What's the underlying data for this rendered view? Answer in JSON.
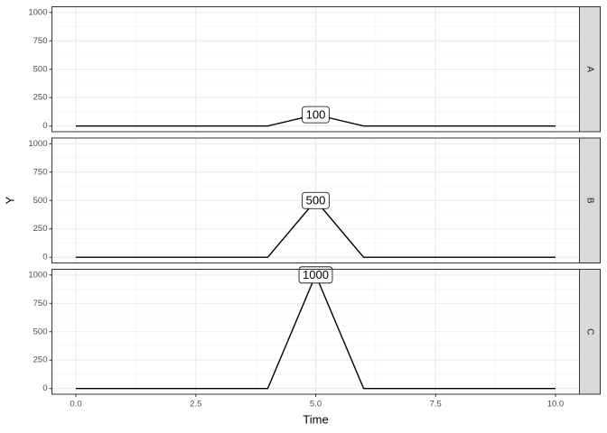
{
  "chart_data": {
    "type": "line",
    "x_label": "Time",
    "y_label": "Y",
    "x": [
      0,
      1,
      2,
      3,
      4,
      5,
      6,
      7,
      8,
      9,
      10
    ],
    "series": [
      {
        "name": "A",
        "color": "#000000",
        "values": [
          0,
          0,
          0,
          0,
          0,
          100,
          0,
          0,
          0,
          0,
          0
        ]
      },
      {
        "name": "B",
        "color": "#000000",
        "values": [
          0,
          0,
          0,
          0,
          0,
          500,
          0,
          0,
          0,
          0,
          0
        ]
      },
      {
        "name": "C",
        "color": "#000000",
        "values": [
          0,
          0,
          0,
          0,
          0,
          1000,
          0,
          0,
          0,
          0,
          0
        ]
      }
    ],
    "xlim": [
      -0.5,
      10.5
    ],
    "xticks": [
      {
        "value": 0,
        "label": "0.0"
      },
      2.5,
      {
        "value": 5,
        "label": "5.0"
      },
      7.5,
      {
        "value": 10,
        "label": "10.0"
      }
    ],
    "ylim": [
      -50,
      1050
    ],
    "yticks": [
      0,
      250,
      500,
      750,
      1000
    ],
    "grid": true
  }
}
